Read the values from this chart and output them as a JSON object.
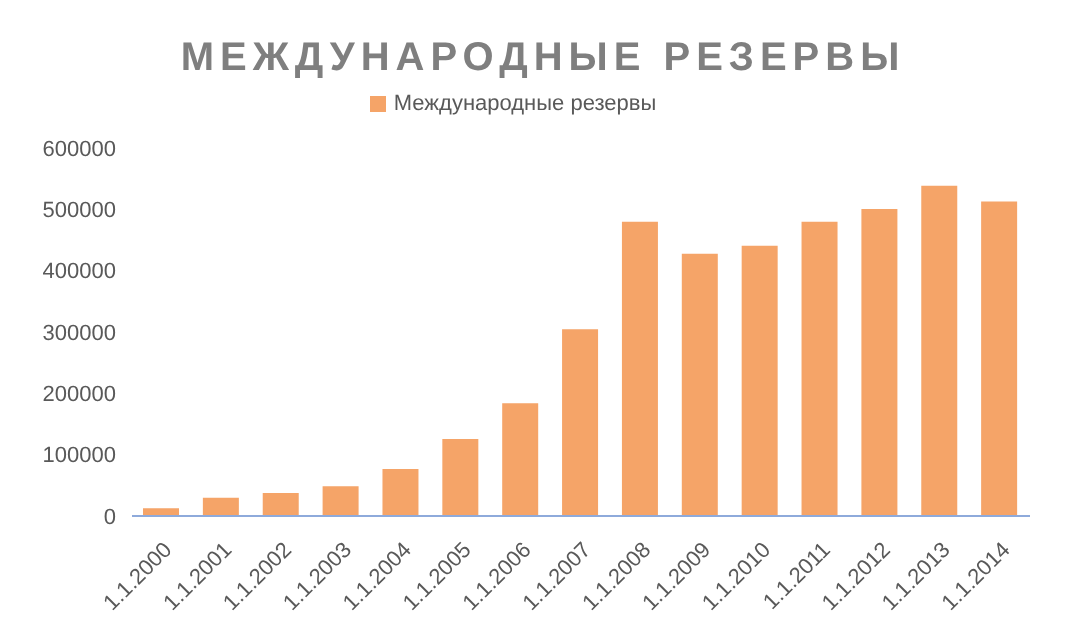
{
  "chart_data": {
    "type": "bar",
    "title": "МЕЖДУНАРОДНЫЕ РЕЗЕРВЫ",
    "categories": [
      "1.1.2000",
      "1.1.2001",
      "1.1.2002",
      "1.1.2003",
      "1.1.2004",
      "1.1.2005",
      "1.1.2006",
      "1.1.2007",
      "1.1.2008",
      "1.1.2009",
      "1.1.2010",
      "1.1.2011",
      "1.1.2012",
      "1.1.2013",
      "1.1.2014"
    ],
    "series": [
      {
        "name": "Международные резервы",
        "color": "#f5a468",
        "values": [
          11000,
          28000,
          36000,
          47000,
          75000,
          124000,
          182000,
          303000,
          478000,
          426000,
          439000,
          478000,
          499000,
          537000,
          511000
        ]
      }
    ],
    "ylim": [
      0,
      600000
    ],
    "yticks": [
      0,
      100000,
      200000,
      300000,
      400000,
      500000,
      600000
    ],
    "grid": false,
    "legend": "top"
  }
}
